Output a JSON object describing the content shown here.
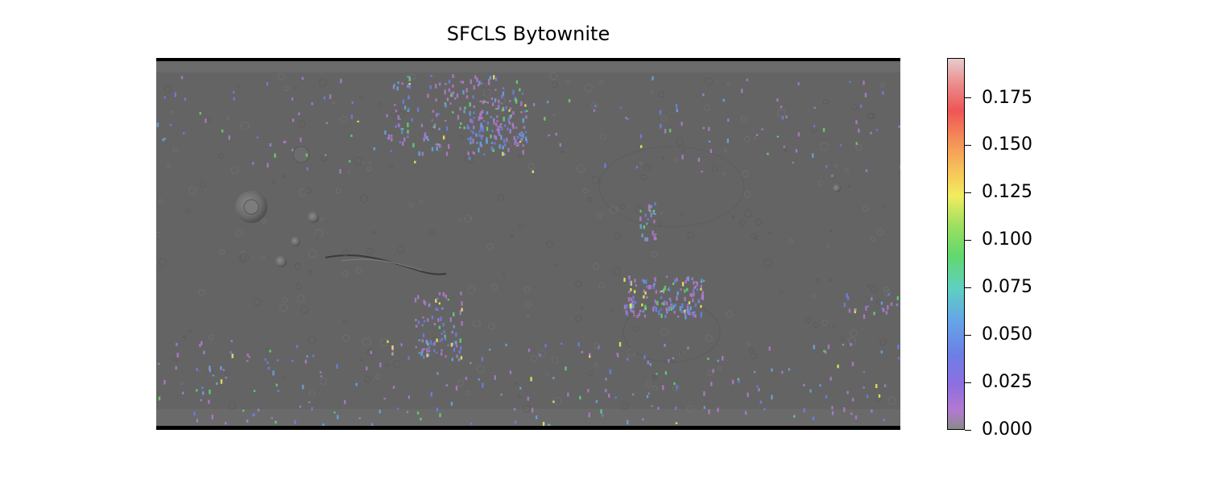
{
  "title": "SFCLS Bytownite",
  "colorbar": {
    "ticks": [
      "0.000",
      "0.025",
      "0.050",
      "0.075",
      "0.100",
      "0.125",
      "0.150",
      "0.175"
    ],
    "range": [
      0,
      0.196
    ],
    "colors": [
      "#8a8a8a",
      "#b27ad0",
      "#6c7fe6",
      "#64a8e6",
      "#62d86e",
      "#f2ec5e",
      "#f48f58",
      "#ee5656",
      "#e6cccc"
    ]
  },
  "chart_data": {
    "type": "heatmap",
    "title": "SFCLS Bytownite",
    "colorbar_ticks": [
      0.0,
      0.025,
      0.05,
      0.075,
      0.1,
      0.125,
      0.15,
      0.175
    ],
    "value_range": [
      0.0,
      0.196
    ],
    "basemap": "grayscale shaded relief global map",
    "grid": false
  }
}
